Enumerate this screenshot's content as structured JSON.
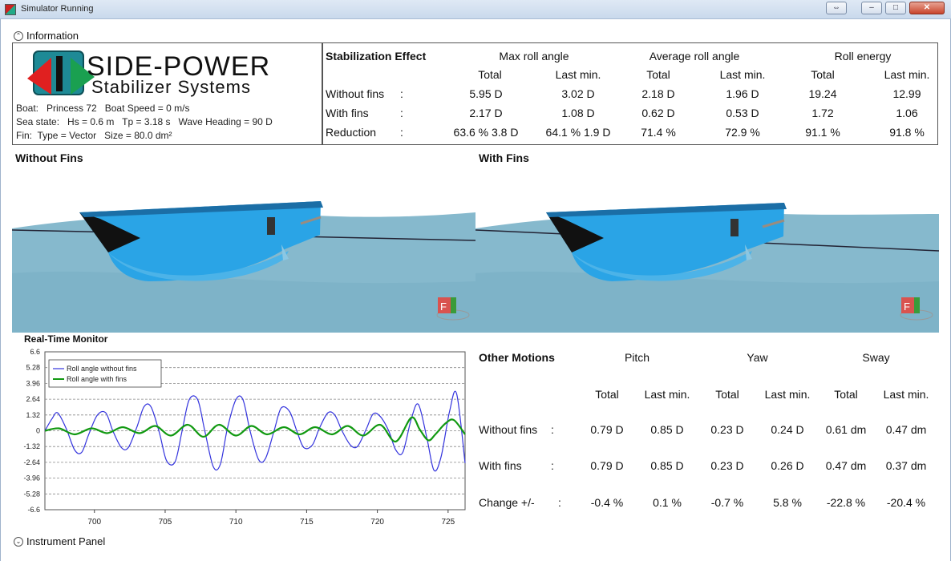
{
  "window": {
    "title": "Simulator Running",
    "restore_glyph": "⇔",
    "min_glyph": "–",
    "max_glyph": "□",
    "close_glyph": "✕"
  },
  "information": {
    "label": "Information",
    "icon": "chevron-up-icon",
    "glyph": "⌃"
  },
  "logo": {
    "line1": "SIDE-POWER",
    "line2": "Stabilizer Systems",
    "colors": {
      "red": "#e02020",
      "green": "#1aa050",
      "teal": "#1e8a96"
    }
  },
  "boat": {
    "line1": "Boat:   Princess 72   Boat Speed = 0 m/s",
    "line2": "Sea state:   Hs = 0.6 m   Tp = 3.18 s   Wave Heading = 90 D",
    "line3": "Fin:  Type = Vector   Size = 80.0 dm²"
  },
  "stabilization": {
    "title": "Stabilization Effect",
    "groups": [
      "Max roll angle",
      "Average roll angle",
      "Roll energy"
    ],
    "subheaders": [
      "Total",
      "Last min.",
      "Total",
      "Last min.",
      "Total",
      "Last min."
    ],
    "rows": [
      {
        "label": "Without fins",
        "sep": ":",
        "values": [
          "5.95 D",
          "3.02 D",
          "2.18 D",
          "1.96 D",
          "19.24",
          "12.99"
        ]
      },
      {
        "label": "With fins",
        "sep": ":",
        "values": [
          "2.17 D",
          "1.08 D",
          "0.62 D",
          "0.53 D",
          "1.72",
          "1.06"
        ]
      },
      {
        "label": "Reduction",
        "sep": ":",
        "values": [
          "63.6 % 3.8 D",
          "64.1 % 1.9 D",
          "71.4 %",
          "72.9 %",
          "91.1 %",
          "91.8 %"
        ]
      }
    ]
  },
  "views": {
    "left_title": "Without Fins",
    "right_title": "With Fins",
    "hull_color": "#2aa4e6",
    "sea_color": "#7fb3c9",
    "badge_letter": "F",
    "badge_icon": "fin-controller-icon"
  },
  "monitor": {
    "title": "Real-Time Monitor"
  },
  "chart_data": {
    "type": "line",
    "title": "Real-Time Monitor",
    "xlabel": "",
    "ylabel": "",
    "xlim": [
      696.5,
      726.2
    ],
    "ylim": [
      -6.6,
      6.6
    ],
    "yticks": [
      "6.6",
      "5.28",
      "3.96",
      "2.64",
      "1.32",
      "0",
      "-1.32",
      "-2.64",
      "-3.96",
      "-5.28",
      "-6.6"
    ],
    "ytick_values": [
      6.6,
      5.28,
      3.96,
      2.64,
      1.32,
      0,
      -1.32,
      -2.64,
      -3.96,
      -5.28,
      -6.6
    ],
    "xticks": [
      "700",
      "705",
      "710",
      "715",
      "720",
      "725"
    ],
    "xtick_values": [
      700,
      705,
      710,
      715,
      720,
      725
    ],
    "grid": true,
    "legend": "top-left",
    "series": [
      {
        "name": "Roll angle without fins",
        "color": "#3333dd",
        "x": [
          696.5,
          697.0,
          697.4,
          698.0,
          698.6,
          699.1,
          699.6,
          700.2,
          700.8,
          701.3,
          701.9,
          702.4,
          703.0,
          703.5,
          704.0,
          704.6,
          705.1,
          705.7,
          706.2,
          706.7,
          707.3,
          707.8,
          708.4,
          708.9,
          709.4,
          710.0,
          710.5,
          711.0,
          711.6,
          712.1,
          712.7,
          713.2,
          713.8,
          714.3,
          714.8,
          715.4,
          715.9,
          716.5,
          717.0,
          717.5,
          718.1,
          718.6,
          719.2,
          719.7,
          720.2,
          720.8,
          721.3,
          721.8,
          722.4,
          722.9,
          723.5,
          724.0,
          724.5,
          725.1,
          725.6,
          726.2
        ],
        "y": [
          0.0,
          1.0,
          1.5,
          0.2,
          -1.6,
          -1.8,
          -0.3,
          1.3,
          1.5,
          0.0,
          -1.4,
          -1.4,
          0.3,
          2.0,
          2.0,
          -0.2,
          -2.5,
          -2.6,
          0.0,
          2.6,
          2.6,
          0.0,
          -3.0,
          -2.8,
          0.2,
          2.6,
          2.6,
          0.0,
          -2.4,
          -2.3,
          0.0,
          1.9,
          1.6,
          0.0,
          -1.4,
          -1.2,
          0.2,
          1.5,
          1.3,
          0.0,
          -1.2,
          -1.3,
          0.1,
          1.4,
          1.2,
          0.0,
          -1.6,
          -1.8,
          1.0,
          2.2,
          -0.6,
          -3.3,
          -2.2,
          1.6,
          3.1,
          -2.7
        ]
      },
      {
        "name": "Roll angle with fins",
        "color": "#119911",
        "x": [
          696.5,
          697.5,
          698.6,
          699.8,
          700.9,
          702.0,
          703.2,
          704.3,
          705.4,
          706.6,
          707.7,
          708.8,
          710.0,
          711.1,
          712.2,
          713.4,
          714.5,
          715.6,
          716.8,
          717.9,
          719.0,
          720.2,
          721.3,
          722.4,
          723.0,
          723.6,
          724.1,
          724.8,
          725.4,
          726.2
        ],
        "y": [
          0.0,
          0.2,
          -0.3,
          0.2,
          -0.2,
          0.3,
          -0.2,
          0.4,
          -0.4,
          0.5,
          -0.5,
          0.5,
          -0.4,
          0.4,
          -0.3,
          0.3,
          -0.3,
          0.3,
          -0.3,
          0.4,
          -0.4,
          0.5,
          -0.9,
          1.1,
          0.1,
          -0.8,
          -0.3,
          0.6,
          0.9,
          -0.3
        ]
      }
    ]
  },
  "other_motions": {
    "title": "Other Motions",
    "groups": [
      "Pitch",
      "Yaw",
      "Sway"
    ],
    "subheaders": [
      "Total",
      "Last min.",
      "Total",
      "Last min.",
      "Total",
      "Last min."
    ],
    "rows": [
      {
        "label": "Without fins",
        "sep": ":",
        "values": [
          "0.79 D",
          "0.85 D",
          "0.23 D",
          "0.24 D",
          "0.61 dm",
          "0.47 dm"
        ]
      },
      {
        "label": "With fins",
        "sep": ":",
        "values": [
          "0.79 D",
          "0.85 D",
          "0.23 D",
          "0.26 D",
          "0.47 dm",
          "0.37 dm"
        ]
      },
      {
        "label": "Change +/-",
        "sep": ":",
        "values": [
          "-0.4 %",
          "0.1 %",
          "-0.7 %",
          "5.8 %",
          "-22.8 %",
          "-20.4 %"
        ]
      }
    ]
  },
  "instrument_panel": {
    "label": "Instrument Panel",
    "icon": "chevron-down-icon",
    "glyph": "⌄"
  }
}
